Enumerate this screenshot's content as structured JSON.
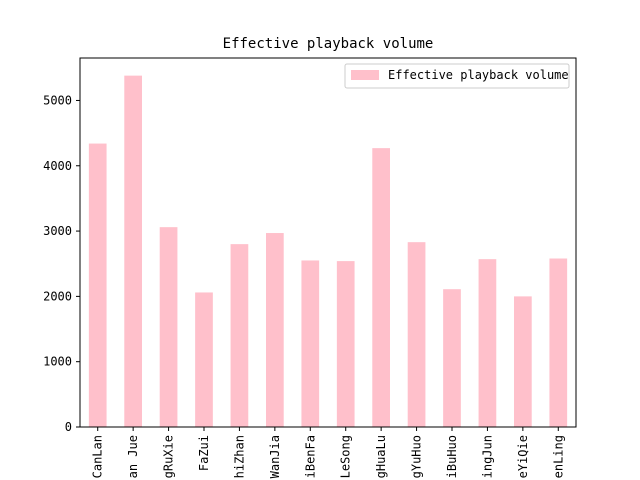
{
  "chart_data": {
    "type": "bar",
    "title": "Effective playback volume",
    "xlabel": "",
    "ylabel": "",
    "categories": [
      "CanLan",
      "an Jue",
      "gRuXie",
      "FaZui",
      "hiZhan",
      "WanJia",
      "iBenFa",
      "LeSong",
      "gHuaLu",
      "gYuHuo",
      "iBuHuo",
      "ingJun",
      "eYiQie",
      "enLing"
    ],
    "series": [
      {
        "name": "Effective playback volume",
        "values": [
          4340,
          5380,
          3060,
          2060,
          2800,
          2970,
          2550,
          2540,
          4270,
          2830,
          2110,
          2570,
          2000,
          2580
        ]
      }
    ],
    "ylim": [
      0,
      5650
    ],
    "yticks": [
      0,
      1000,
      2000,
      3000,
      4000,
      5000
    ],
    "grid": false,
    "legend_position": "top-right",
    "colors": {
      "bar": "#ffc0cb"
    }
  }
}
